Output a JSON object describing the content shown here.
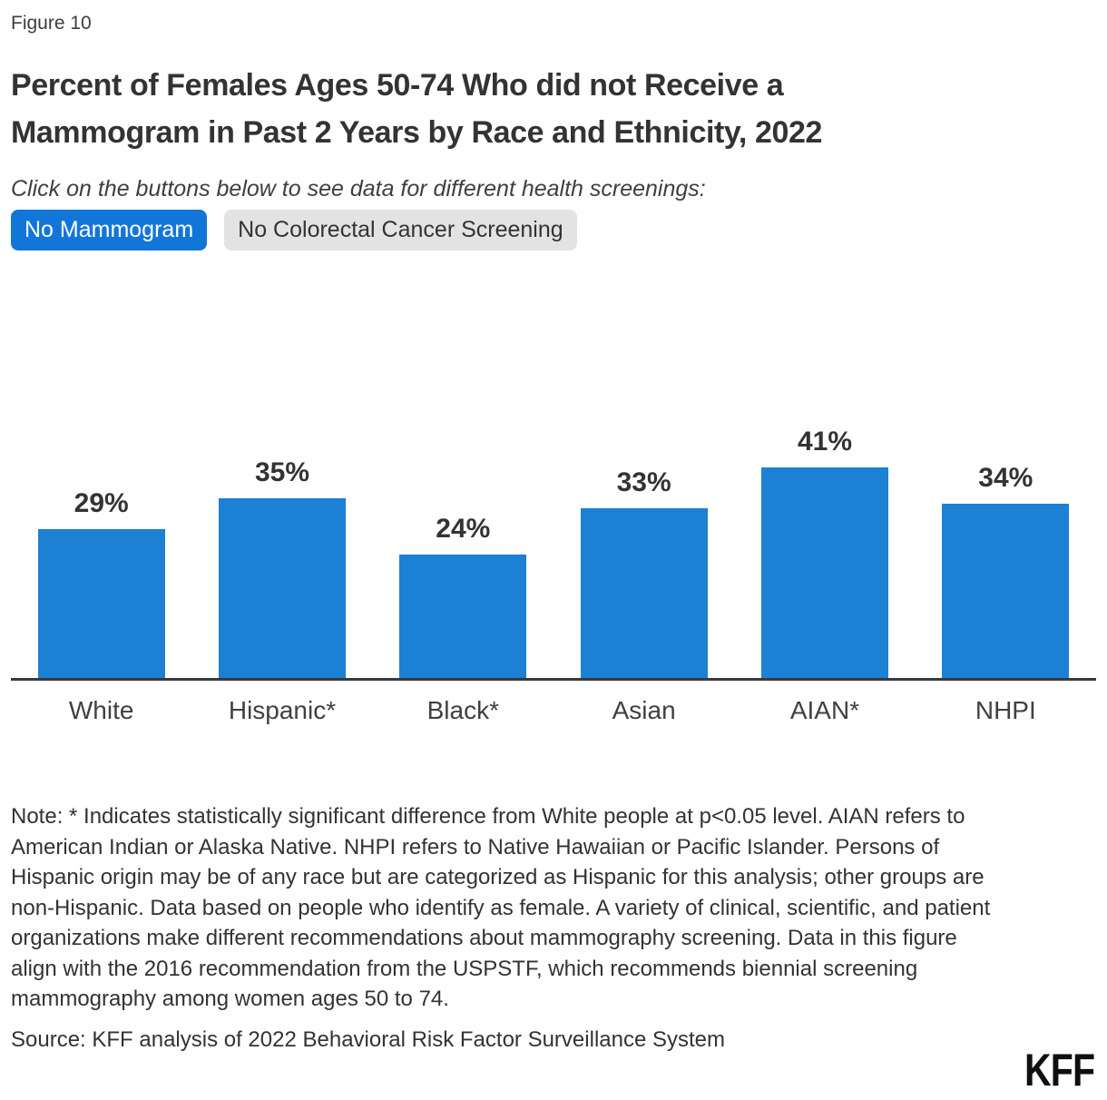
{
  "figure_label": "Figure 10",
  "title": "Percent of Females Ages 50-74 Who did not Receive a Mammogram in Past 2 Years by Race and Ethnicity, 2022",
  "subtitle": "Click on the buttons below to see data for different health screenings:",
  "buttons": [
    {
      "label": "No Mammogram",
      "active": true
    },
    {
      "label": "No Colorectal Cancer Screening",
      "active": false
    }
  ],
  "chart_data": {
    "type": "bar",
    "categories": [
      "White",
      "Hispanic*",
      "Black*",
      "Asian",
      "AIAN*",
      "NHPI"
    ],
    "values": [
      29,
      35,
      24,
      33,
      41,
      34
    ],
    "value_labels": [
      "29%",
      "35%",
      "24%",
      "33%",
      "41%",
      "34%"
    ],
    "title": "Percent of Females Ages 50-74 Who did not Receive a Mammogram in Past 2 Years by Race and Ethnicity, 2022",
    "xlabel": "",
    "ylabel": "",
    "ylim": [
      0,
      45
    ],
    "grid": false,
    "legend": false,
    "data_labels_position": "above bars",
    "bar_color": "#1C80D4",
    "axis_color": "#3A3A3A"
  },
  "note": "Note: * Indicates statistically significant difference from White people at p<0.05 level. AIAN refers to American Indian or Alaska Native. NHPI refers to Native Hawaiian or Pacific Islander. Persons of Hispanic origin may be of any race but are categorized as Hispanic for this analysis; other groups are non-Hispanic. Data based on people who identify as female. A variety of clinical, scientific, and patient organizations make different recommendations about mammography screening. Data in this figure align with the 2016 recommendation from the USPSTF, which recommends biennial screening mammography among women ages 50 to 74.",
  "source": "Source: KFF analysis of 2022 Behavioral Risk Factor Surveillance System",
  "logo_text": "KFF",
  "colors": {
    "accent_blue": "#1276D9",
    "bar_blue": "#1C80D4",
    "inactive_button_bg": "#E3E3E3",
    "text_dark": "#333333",
    "axis": "#3A3A3A"
  }
}
